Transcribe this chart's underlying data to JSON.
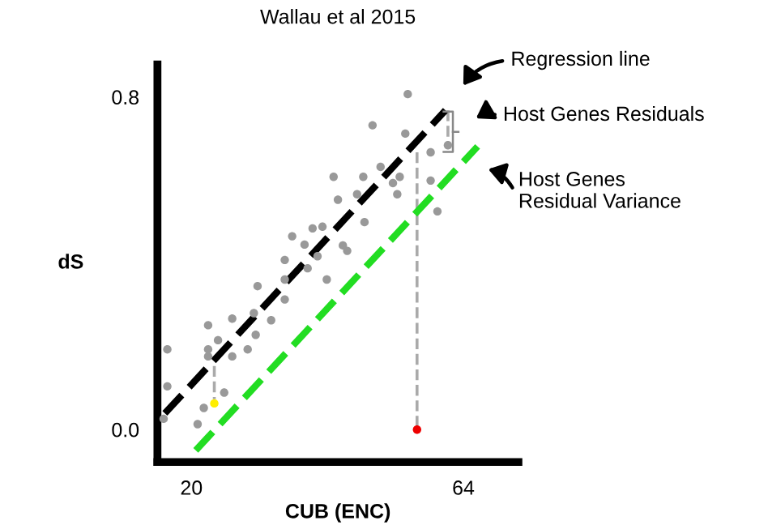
{
  "chart_data": {
    "type": "scatter",
    "title": "Wallau et al 2015",
    "xlabel": "CUB (ENC)",
    "ylabel": "dS",
    "xlim": [
      14.5,
      72.9
    ],
    "ylim": [
      -0.078,
      0.878
    ],
    "xticks": [
      20,
      64
    ],
    "yticks": [
      {
        "value": 0,
        "label": "0.0"
      },
      {
        "value": 0.8,
        "label": "0.8"
      }
    ],
    "grid": false,
    "legend": false,
    "series": [
      {
        "color": "#999999",
        "marker": "circle",
        "x": [
          15.5,
          16.1,
          16.1,
          21.0,
          22.0,
          22.7,
          22.7,
          22.7,
          24.3,
          25.3,
          26.6,
          26.6,
          29.1,
          30.1,
          30.4,
          30.7,
          32.9,
          35.1,
          35.1,
          35.1,
          36.3,
          38.3,
          38.8,
          40.4,
          39.6,
          41.2,
          41.9,
          43.0,
          43.7,
          44.5,
          45.2,
          46.8,
          47.8,
          48.0,
          49.3,
          50.6,
          52.6,
          53.3,
          53.7,
          54.6,
          55.0,
          58.7,
          58.7,
          59.8,
          61.5
        ],
        "values": [
          0.026,
          0.104,
          0.193,
          0.013,
          0.052,
          0.251,
          0.193,
          0.176,
          0.215,
          0.089,
          0.176,
          0.267,
          0.193,
          0.28,
          0.228,
          0.345,
          0.263,
          0.313,
          0.361,
          0.408,
          0.465,
          0.445,
          0.388,
          0.417,
          0.484,
          0.488,
          0.361,
          0.608,
          0.553,
          0.443,
          0.43,
          0.566,
          0.608,
          0.499,
          0.732,
          0.632,
          0.593,
          0.566,
          0.608,
          0.712,
          0.807,
          0.667,
          0.599,
          0.525,
          0.684
        ]
      },
      {
        "type": "line",
        "color": "#aaaaaa",
        "line_style": "dashed",
        "x": [
          23.7,
          23.7
        ],
        "values": [
          0.153,
          0.073
        ]
      },
      {
        "type": "line",
        "color": "#aaaaaa",
        "line_style": "dashed",
        "x": [
          56.5,
          56.5
        ],
        "values": [
          0.667,
          0.0
        ]
      },
      {
        "type": "line",
        "color": "#aaaaaa",
        "line_style": "dashed",
        "x": [
          61.5,
          61.5
        ],
        "values": [
          0.768,
          0.684
        ]
      },
      {
        "color": "#ffee00",
        "marker": "circle",
        "x": [
          23.7
        ],
        "values": [
          0.063
        ]
      },
      {
        "color": "#ee0000",
        "marker": "circle",
        "x": [
          56.5
        ],
        "values": [
          0.0
        ]
      },
      {
        "type": "line",
        "color": "#000000",
        "line_style": "dashed",
        "x": [
          15.7,
          61.1
        ],
        "values": [
          0.039,
          0.768
        ]
      },
      {
        "type": "line",
        "color": "#22dd22",
        "line_style": "dashed",
        "x": [
          20.7,
          66.3
        ],
        "values": [
          -0.05,
          0.681
        ]
      }
    ],
    "annotations": [
      "Regression line",
      "Host Genes Residuals",
      "Host Genes\nResidual Variance"
    ]
  }
}
